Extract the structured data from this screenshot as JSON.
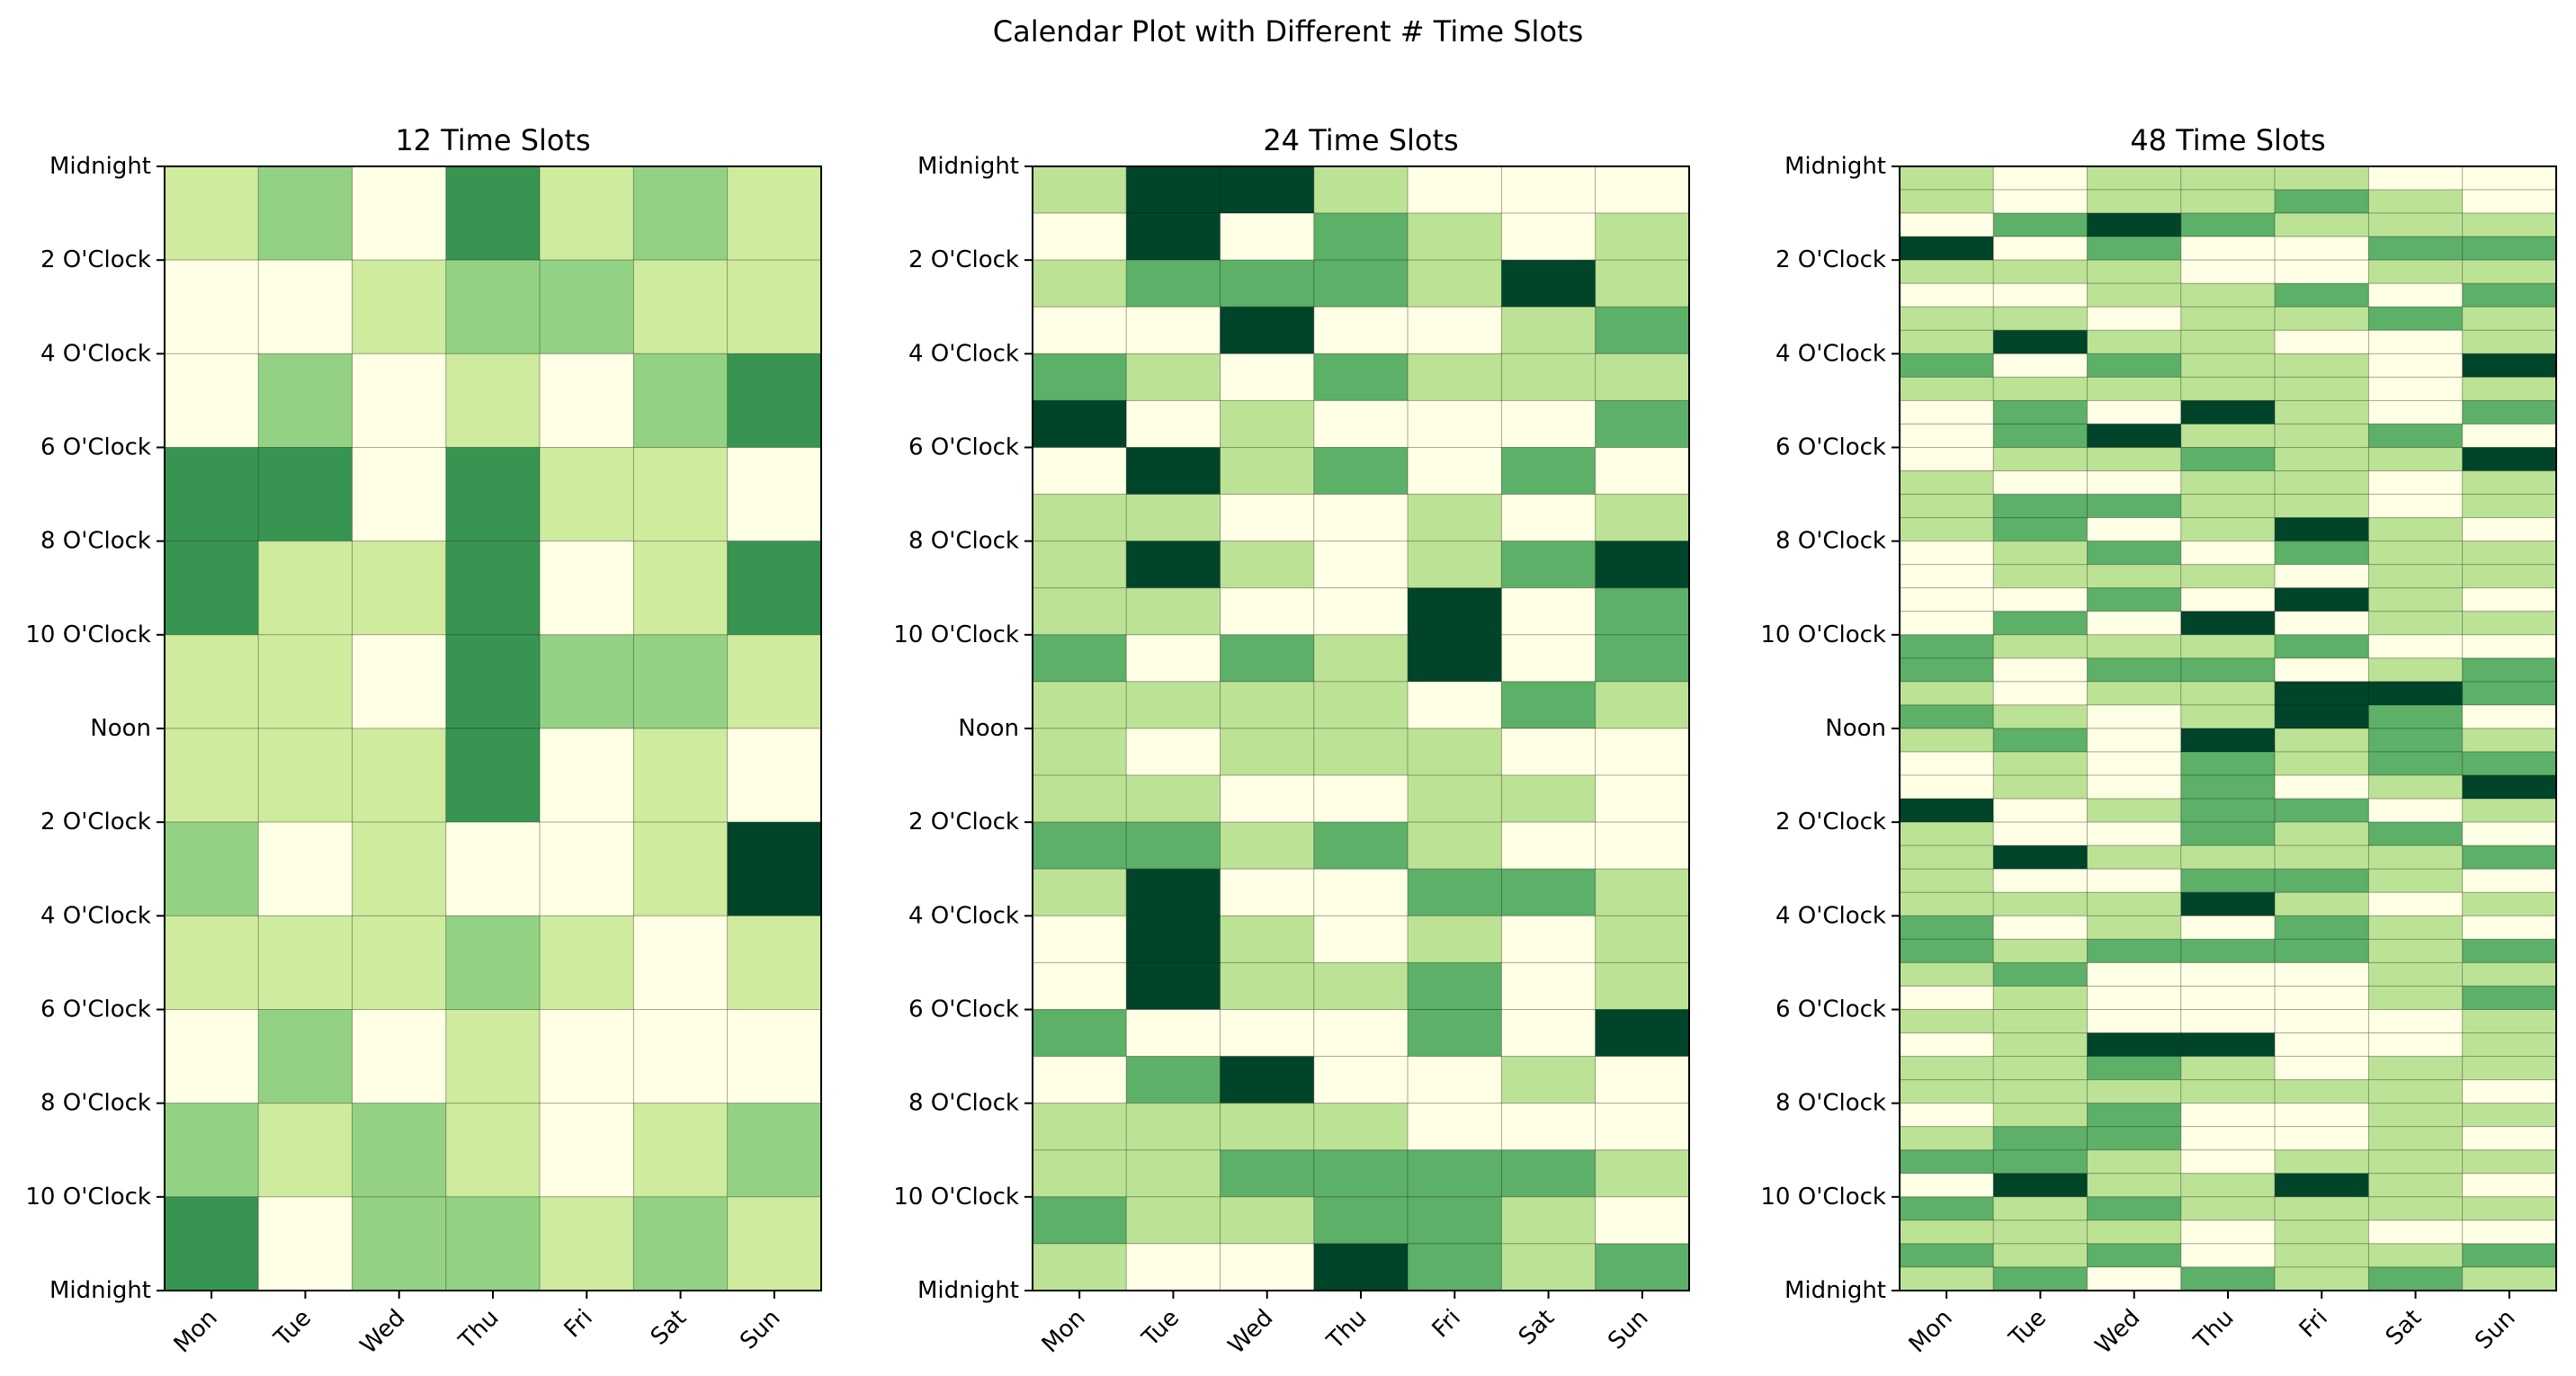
{
  "title": "Calendar Plot with Different # Time Slots",
  "colors": [
    "#ffffe5",
    "#d9f0a3",
    "#addd8e",
    "#78c679",
    "#238443",
    "#004529"
  ],
  "chart_data": [
    {
      "type": "heatmap",
      "title": "12 Time Slots",
      "slots": 12,
      "x_categories": [
        "Mon",
        "Tue",
        "Wed",
        "Thu",
        "Fri",
        "Sat",
        "Sun"
      ],
      "y_tick_labels": [
        "Midnight",
        "2 O'Clock",
        "4 O'Clock",
        "6 O'Clock",
        "8 O'Clock",
        "10 O'Clock",
        "Noon",
        "2 O'Clock",
        "4 O'Clock",
        "6 O'Clock",
        "8 O'Clock",
        "10 O'Clock",
        "Midnight"
      ],
      "value_range": [
        0,
        4
      ],
      "values": [
        [
          1,
          2,
          0,
          3,
          1,
          2,
          1
        ],
        [
          0,
          0,
          1,
          2,
          2,
          1,
          1
        ],
        [
          0,
          2,
          0,
          1,
          0,
          2,
          3
        ],
        [
          3,
          3,
          0,
          3,
          1,
          1,
          0
        ],
        [
          3,
          1,
          1,
          3,
          0,
          1,
          3
        ],
        [
          1,
          1,
          0,
          3,
          2,
          2,
          1
        ],
        [
          1,
          1,
          1,
          3,
          0,
          1,
          0
        ],
        [
          2,
          0,
          1,
          0,
          0,
          1,
          4
        ],
        [
          1,
          1,
          1,
          2,
          1,
          0,
          1
        ],
        [
          0,
          2,
          0,
          1,
          0,
          0,
          0
        ],
        [
          2,
          1,
          2,
          1,
          0,
          1,
          2
        ],
        [
          3,
          0,
          2,
          2,
          1,
          2,
          1
        ]
      ]
    },
    {
      "type": "heatmap",
      "title": "24 Time Slots",
      "slots": 24,
      "x_categories": [
        "Mon",
        "Tue",
        "Wed",
        "Thu",
        "Fri",
        "Sat",
        "Sun"
      ],
      "y_tick_labels": [
        "Midnight",
        "2 O'Clock",
        "4 O'Clock",
        "6 O'Clock",
        "8 O'Clock",
        "10 O'Clock",
        "Noon",
        "2 O'Clock",
        "4 O'Clock",
        "6 O'Clock",
        "8 O'Clock",
        "10 O'Clock",
        "Midnight"
      ],
      "value_range": [
        0,
        3
      ],
      "values": [
        [
          1,
          3,
          3,
          1,
          0,
          0,
          0
        ],
        [
          0,
          3,
          0,
          2,
          1,
          0,
          1
        ],
        [
          1,
          2,
          2,
          2,
          1,
          3,
          1
        ],
        [
          0,
          0,
          3,
          0,
          0,
          1,
          2
        ],
        [
          2,
          1,
          0,
          2,
          1,
          1,
          1
        ],
        [
          3,
          0,
          1,
          0,
          0,
          0,
          2
        ],
        [
          0,
          3,
          1,
          2,
          0,
          2,
          0
        ],
        [
          1,
          1,
          0,
          0,
          1,
          0,
          1
        ],
        [
          1,
          3,
          1,
          0,
          1,
          2,
          3
        ],
        [
          1,
          1,
          0,
          0,
          3,
          0,
          2
        ],
        [
          2,
          0,
          2,
          1,
          3,
          0,
          2
        ],
        [
          1,
          1,
          1,
          1,
          0,
          2,
          1
        ],
        [
          1,
          0,
          1,
          1,
          1,
          0,
          0
        ],
        [
          1,
          1,
          0,
          0,
          1,
          1,
          0
        ],
        [
          2,
          2,
          1,
          2,
          1,
          0,
          0
        ],
        [
          1,
          3,
          0,
          0,
          2,
          2,
          1
        ],
        [
          0,
          3,
          1,
          0,
          1,
          0,
          1
        ],
        [
          0,
          3,
          1,
          1,
          2,
          0,
          1
        ],
        [
          2,
          0,
          0,
          0,
          2,
          0,
          3
        ],
        [
          0,
          2,
          3,
          0,
          0,
          1,
          0
        ],
        [
          1,
          1,
          1,
          1,
          0,
          0,
          0
        ],
        [
          1,
          1,
          2,
          2,
          2,
          2,
          1
        ],
        [
          2,
          1,
          1,
          2,
          2,
          1,
          0
        ],
        [
          1,
          0,
          0,
          3,
          2,
          1,
          2
        ]
      ]
    },
    {
      "type": "heatmap",
      "title": "48 Time Slots",
      "slots": 48,
      "x_categories": [
        "Mon",
        "Tue",
        "Wed",
        "Thu",
        "Fri",
        "Sat",
        "Sun"
      ],
      "y_tick_labels": [
        "Midnight",
        "2 O'Clock",
        "4 O'Clock",
        "6 O'Clock",
        "8 O'Clock",
        "10 O'Clock",
        "Noon",
        "2 O'Clock",
        "4 O'Clock",
        "6 O'Clock",
        "8 O'Clock",
        "10 O'Clock",
        "Midnight"
      ],
      "value_range": [
        0,
        3
      ],
      "values": [
        [
          1,
          0,
          1,
          1,
          1,
          0,
          0
        ],
        [
          1,
          0,
          1,
          1,
          2,
          1,
          0
        ],
        [
          0,
          2,
          3,
          2,
          1,
          1,
          1
        ],
        [
          3,
          0,
          2,
          0,
          0,
          2,
          2
        ],
        [
          1,
          1,
          1,
          0,
          0,
          1,
          1
        ],
        [
          0,
          0,
          1,
          1,
          2,
          0,
          2
        ],
        [
          1,
          1,
          0,
          1,
          1,
          2,
          1
        ],
        [
          1,
          3,
          1,
          1,
          0,
          0,
          1
        ],
        [
          2,
          0,
          2,
          1,
          1,
          0,
          3
        ],
        [
          1,
          1,
          1,
          1,
          1,
          0,
          1
        ],
        [
          0,
          2,
          0,
          3,
          1,
          0,
          2
        ],
        [
          0,
          2,
          3,
          1,
          1,
          2,
          0
        ],
        [
          0,
          1,
          1,
          2,
          1,
          1,
          3
        ],
        [
          1,
          0,
          0,
          1,
          1,
          0,
          1
        ],
        [
          1,
          2,
          2,
          1,
          1,
          0,
          1
        ],
        [
          1,
          2,
          0,
          1,
          3,
          1,
          0
        ],
        [
          0,
          1,
          2,
          0,
          2,
          1,
          1
        ],
        [
          0,
          1,
          1,
          1,
          0,
          1,
          1
        ],
        [
          0,
          0,
          2,
          0,
          3,
          1,
          0
        ],
        [
          0,
          2,
          0,
          3,
          0,
          1,
          1
        ],
        [
          2,
          1,
          1,
          1,
          2,
          0,
          0
        ],
        [
          2,
          0,
          2,
          2,
          0,
          1,
          2
        ],
        [
          1,
          0,
          1,
          1,
          3,
          3,
          2
        ],
        [
          2,
          1,
          0,
          1,
          3,
          2,
          0
        ],
        [
          1,
          2,
          0,
          3,
          1,
          2,
          1
        ],
        [
          0,
          1,
          0,
          2,
          1,
          2,
          2
        ],
        [
          0,
          1,
          0,
          2,
          0,
          1,
          3
        ],
        [
          3,
          0,
          1,
          2,
          2,
          0,
          1
        ],
        [
          1,
          0,
          0,
          2,
          1,
          2,
          0
        ],
        [
          1,
          3,
          1,
          1,
          1,
          1,
          2
        ],
        [
          1,
          0,
          0,
          2,
          2,
          1,
          0
        ],
        [
          1,
          1,
          1,
          3,
          1,
          0,
          1
        ],
        [
          2,
          0,
          1,
          0,
          2,
          1,
          0
        ],
        [
          2,
          1,
          2,
          2,
          2,
          1,
          2
        ],
        [
          1,
          2,
          0,
          0,
          0,
          1,
          1
        ],
        [
          0,
          1,
          0,
          0,
          0,
          1,
          2
        ],
        [
          1,
          1,
          0,
          0,
          0,
          0,
          1
        ],
        [
          0,
          1,
          3,
          3,
          0,
          0,
          1
        ],
        [
          1,
          1,
          2,
          1,
          0,
          1,
          1
        ],
        [
          1,
          1,
          1,
          1,
          1,
          1,
          0
        ],
        [
          0,
          1,
          2,
          0,
          0,
          1,
          1
        ],
        [
          1,
          2,
          2,
          0,
          0,
          1,
          0
        ],
        [
          2,
          2,
          1,
          0,
          1,
          1,
          1
        ],
        [
          0,
          3,
          1,
          1,
          3,
          1,
          0
        ],
        [
          2,
          1,
          2,
          1,
          1,
          1,
          1
        ],
        [
          1,
          1,
          1,
          0,
          1,
          0,
          0
        ],
        [
          2,
          1,
          2,
          0,
          1,
          1,
          2
        ],
        [
          1,
          2,
          0,
          2,
          1,
          2,
          1
        ]
      ]
    }
  ]
}
